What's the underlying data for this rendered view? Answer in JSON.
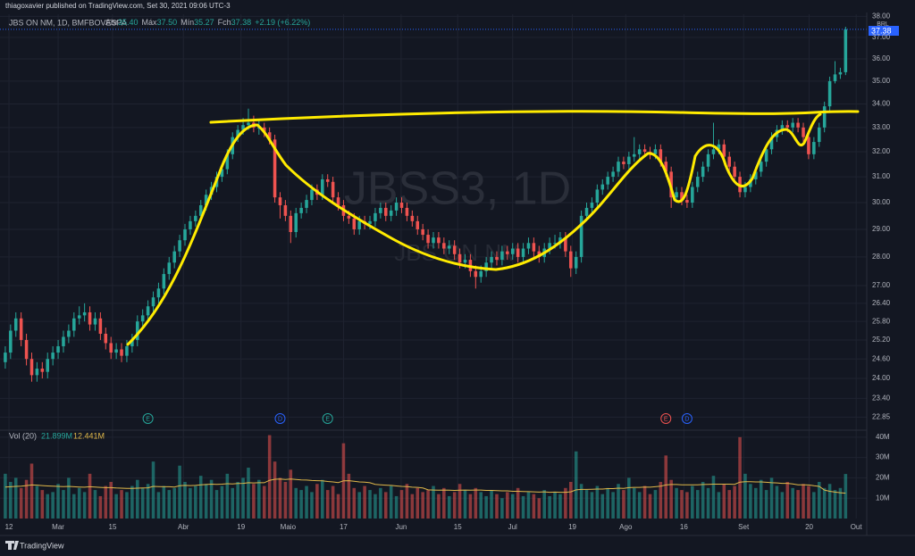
{
  "header": {
    "publisher": "thiagoxavier published on TradingView.com, Set 30, 2021 09:06 UTC-3"
  },
  "chart_data": {
    "type": "candlestick",
    "title": "JBS ON NM, 1D, BMFBOVESPA",
    "legend": {
      "open_label": "Abr",
      "open": "35.40",
      "high_label": "Máx",
      "high": "37.50",
      "low_label": "Mín",
      "low": "35.27",
      "close_label": "Fch",
      "close": "37.38",
      "change": "+2.19 (+6.22%)"
    },
    "watermark": "JBSS3, 1D",
    "watermark_sub": "JBS ON NM",
    "currency": "BRL",
    "up_color": "#26a69a",
    "down_color": "#ef5350",
    "log_scale": true,
    "grid": true,
    "ylim": [
      22.5,
      38.1
    ],
    "yticks": [
      {
        "value": 22.85,
        "label": "22.85"
      },
      {
        "value": 23.4,
        "label": "23.40"
      },
      {
        "value": 24,
        "label": "24.00"
      },
      {
        "value": 24.6,
        "label": "24.60"
      },
      {
        "value": 25.2,
        "label": "25.20"
      },
      {
        "value": 25.8,
        "label": "25.80"
      },
      {
        "value": 26.4,
        "label": "26.40"
      },
      {
        "value": 27,
        "label": "27.00"
      },
      {
        "value": 28,
        "label": "28.00"
      },
      {
        "value": 29,
        "label": "29.00"
      },
      {
        "value": 30,
        "label": "30.00"
      },
      {
        "value": 31,
        "label": "31.00"
      },
      {
        "value": 32,
        "label": "32.00"
      },
      {
        "value": 33,
        "label": "33.00"
      },
      {
        "value": 34,
        "label": "34.00"
      },
      {
        "value": 35,
        "label": "35.00"
      },
      {
        "value": 36,
        "label": "36.00"
      },
      {
        "value": 37,
        "label": "37.00"
      },
      {
        "value": 38,
        "label": "38.00"
      }
    ],
    "xlim": [
      -1,
      163
    ],
    "xticks": [
      {
        "value": 0.7,
        "label": "12"
      },
      {
        "value": 10,
        "label": "Mar"
      },
      {
        "value": 20.3,
        "label": "15"
      },
      {
        "value": 33.7,
        "label": "Abr"
      },
      {
        "value": 44.6,
        "label": "19"
      },
      {
        "value": 53.5,
        "label": "Maio"
      },
      {
        "value": 64,
        "label": "17"
      },
      {
        "value": 74.9,
        "label": "Jun"
      },
      {
        "value": 85.6,
        "label": "15"
      },
      {
        "value": 96,
        "label": "Jul"
      },
      {
        "value": 107.3,
        "label": "19"
      },
      {
        "value": 117.4,
        "label": "Ago"
      },
      {
        "value": 128.4,
        "label": "16"
      },
      {
        "value": 139.7,
        "label": "Set"
      },
      {
        "value": 152.1,
        "label": "20"
      },
      {
        "value": 161,
        "label": "Out"
      }
    ],
    "open": [
      24.5,
      24.8,
      25.5,
      25.9,
      25.2,
      24.6,
      24.1,
      24.3,
      24.2,
      24.6,
      24.8,
      25.0,
      25.3,
      25.5,
      25.9,
      26.0,
      26.1,
      25.7,
      25.9,
      25.4,
      25.1,
      24.8,
      24.9,
      24.7,
      25.0,
      25.2,
      25.8,
      26.0,
      26.3,
      26.6,
      26.9,
      27.4,
      27.8,
      28.2,
      28.6,
      29.0,
      29.3,
      29.5,
      29.9,
      30.3,
      30.6,
      31.0,
      31.3,
      31.9,
      32.6,
      32.9,
      33.1,
      33.2,
      33.0,
      33.0,
      32.8,
      32.5,
      30.2,
      29.9,
      29.5,
      28.9,
      29.6,
      29.8,
      30.1,
      30.5,
      30.3,
      30.9,
      30.8,
      30.2,
      29.9,
      29.5,
      29.4,
      29.0,
      29.3,
      29.2,
      29.3,
      29.6,
      29.8,
      29.5,
      29.7,
      30.0,
      29.8,
      29.5,
      29.3,
      29.0,
      28.8,
      28.5,
      28.7,
      28.5,
      28.3,
      28.4,
      28.1,
      27.8,
      27.9,
      27.5,
      27.3,
      27.5,
      27.8,
      28.0,
      27.9,
      28.2,
      28.1,
      28.3,
      28.0,
      28.3,
      28.5,
      28.2,
      28.0,
      28.3,
      28.5,
      28.5,
      28.7,
      28.2,
      27.6,
      28.0,
      29.5,
      29.8,
      30.0,
      30.5,
      30.7,
      31.0,
      31.2,
      31.6,
      31.5,
      31.8,
      31.9,
      32.1,
      32.0,
      31.9,
      32.1,
      31.6,
      31.2,
      30.2,
      30.4,
      30.1,
      30.0,
      30.6,
      31.0,
      31.4,
      31.9,
      32.1,
      32.3,
      31.8,
      31.4,
      31.0,
      30.4,
      30.6,
      30.9,
      31.2,
      31.6,
      32.1,
      32.6,
      32.9,
      33.1,
      33.0,
      33.2,
      33.0,
      32.6,
      31.9,
      32.4,
      33.0,
      33.9,
      35.0,
      35.3,
      35.4
    ],
    "high": [
      25.0,
      25.7,
      26.1,
      26.1,
      25.4,
      24.8,
      24.5,
      24.5,
      24.8,
      25.0,
      25.2,
      25.5,
      25.7,
      26.1,
      26.3,
      26.4,
      26.3,
      26.1,
      26.1,
      25.6,
      25.3,
      25.1,
      25.1,
      25.2,
      25.4,
      26.0,
      26.2,
      26.5,
      26.8,
      27.1,
      27.6,
      28.0,
      28.4,
      28.8,
      29.2,
      29.5,
      29.7,
      30.1,
      30.5,
      30.8,
      31.2,
      31.5,
      32.1,
      32.8,
      33.1,
      33.4,
      33.8,
      33.5,
      33.3,
      33.2,
      33.0,
      32.7,
      30.4,
      30.1,
      29.7,
      29.8,
      30.0,
      30.3,
      30.7,
      30.7,
      31.1,
      31.1,
      31.0,
      30.4,
      30.1,
      29.7,
      29.6,
      29.5,
      29.5,
      29.5,
      29.8,
      30.0,
      30.0,
      29.9,
      30.2,
      30.2,
      30.0,
      29.7,
      29.5,
      29.2,
      29.0,
      28.9,
      28.9,
      28.7,
      28.6,
      28.6,
      28.3,
      28.1,
      28.1,
      27.7,
      27.7,
      28.0,
      28.2,
      28.2,
      28.4,
      28.4,
      28.5,
      28.5,
      28.5,
      28.7,
      28.7,
      28.4,
      28.5,
      28.7,
      28.8,
      28.9,
      28.9,
      28.4,
      28.2,
      29.7,
      30.0,
      30.2,
      30.7,
      30.9,
      31.2,
      31.4,
      31.8,
      31.8,
      32.0,
      32.6,
      32.3,
      32.3,
      32.2,
      32.3,
      32.3,
      31.8,
      31.4,
      30.6,
      30.6,
      30.3,
      30.8,
      31.2,
      31.6,
      32.1,
      33.2,
      32.5,
      32.5,
      32.0,
      31.6,
      31.2,
      30.8,
      31.1,
      31.4,
      31.8,
      32.3,
      32.8,
      33.1,
      33.3,
      33.3,
      33.4,
      33.4,
      33.2,
      32.8,
      32.6,
      33.2,
      34.1,
      35.2,
      35.9,
      35.6,
      37.5
    ],
    "low": [
      24.3,
      24.6,
      25.3,
      25.0,
      24.4,
      23.9,
      23.9,
      24.0,
      24.0,
      24.4,
      24.6,
      24.8,
      25.1,
      25.3,
      25.7,
      25.8,
      25.5,
      25.5,
      25.2,
      24.9,
      24.6,
      24.6,
      24.5,
      24.5,
      24.8,
      25.0,
      25.6,
      25.8,
      26.1,
      26.4,
      26.7,
      27.2,
      27.6,
      28.0,
      28.4,
      28.8,
      29.1,
      29.3,
      29.7,
      30.1,
      30.4,
      30.8,
      31.1,
      31.7,
      32.4,
      32.7,
      32.9,
      32.8,
      32.7,
      32.6,
      32.3,
      30.0,
      29.4,
      29.3,
      28.5,
      28.7,
      29.4,
      29.6,
      29.9,
      30.1,
      30.1,
      30.6,
      30.0,
      29.7,
      29.3,
      29.2,
      28.8,
      28.8,
      29.0,
      29.0,
      29.1,
      29.4,
      29.3,
      29.3,
      29.5,
      29.6,
      29.3,
      29.1,
      28.8,
      28.6,
      28.3,
      28.3,
      28.3,
      28.1,
      28.1,
      27.9,
      27.6,
      27.6,
      27.3,
      26.9,
      27.1,
      27.3,
      27.6,
      27.7,
      27.7,
      27.9,
      27.9,
      27.8,
      27.8,
      28.1,
      28.0,
      27.8,
      27.8,
      28.1,
      28.3,
      28.3,
      28.0,
      27.3,
      27.4,
      27.8,
      29.3,
      29.6,
      29.8,
      30.3,
      30.5,
      30.8,
      31.0,
      31.3,
      31.3,
      31.6,
      31.7,
      31.8,
      31.7,
      31.7,
      31.4,
      31.0,
      29.8,
      30.0,
      29.9,
      29.8,
      29.8,
      30.4,
      30.8,
      31.2,
      31.7,
      31.9,
      31.6,
      31.2,
      30.8,
      30.2,
      30.2,
      30.4,
      30.7,
      31.0,
      31.4,
      31.9,
      32.4,
      32.7,
      32.8,
      32.8,
      32.8,
      32.4,
      31.7,
      31.7,
      32.2,
      32.8,
      33.7,
      34.9,
      35.1,
      35.27
    ],
    "close": [
      24.8,
      25.5,
      25.9,
      25.2,
      24.6,
      24.1,
      24.3,
      24.2,
      24.6,
      24.8,
      25.0,
      25.3,
      25.5,
      25.9,
      26.0,
      26.1,
      25.7,
      25.9,
      25.4,
      25.1,
      24.8,
      24.9,
      24.7,
      25.0,
      25.2,
      25.8,
      26.0,
      26.3,
      26.6,
      26.9,
      27.4,
      27.8,
      28.2,
      28.6,
      29.0,
      29.3,
      29.5,
      29.9,
      30.3,
      30.6,
      31.0,
      31.3,
      31.9,
      32.6,
      32.9,
      33.1,
      33.2,
      33.0,
      33.0,
      32.8,
      32.5,
      30.2,
      29.9,
      29.5,
      28.9,
      29.6,
      29.8,
      30.1,
      30.5,
      30.3,
      30.9,
      30.8,
      30.2,
      29.9,
      29.5,
      29.4,
      29.0,
      29.3,
      29.2,
      29.3,
      29.6,
      29.8,
      29.5,
      29.7,
      30.0,
      29.8,
      29.5,
      29.3,
      29.0,
      28.8,
      28.5,
      28.7,
      28.5,
      28.3,
      28.4,
      28.1,
      27.8,
      27.9,
      27.5,
      27.3,
      27.5,
      27.8,
      28.0,
      27.9,
      28.2,
      28.1,
      28.3,
      28.0,
      28.3,
      28.5,
      28.2,
      28.0,
      28.3,
      28.5,
      28.5,
      28.7,
      28.2,
      27.6,
      28.0,
      29.5,
      29.8,
      30.0,
      30.5,
      30.7,
      31.0,
      31.2,
      31.6,
      31.5,
      31.8,
      31.9,
      32.1,
      32.0,
      31.9,
      32.1,
      31.6,
      31.2,
      30.2,
      30.4,
      30.1,
      30.0,
      30.6,
      31.0,
      31.4,
      31.9,
      32.1,
      32.3,
      31.8,
      31.4,
      31.0,
      30.4,
      30.6,
      30.9,
      31.2,
      31.6,
      32.1,
      32.6,
      32.9,
      33.1,
      33.0,
      33.2,
      33.0,
      32.6,
      31.9,
      32.4,
      33.0,
      33.9,
      35.0,
      35.3,
      35.4,
      37.38
    ],
    "events": [
      {
        "index": 27,
        "label": "E",
        "color": "#26a69a"
      },
      {
        "index": 52,
        "label": "D",
        "color": "#2962ff"
      },
      {
        "index": 61,
        "label": "E",
        "color": "#26a69a"
      },
      {
        "index": 125,
        "label": "E",
        "color": "#ef5350"
      },
      {
        "index": 129,
        "label": "D",
        "color": "#2962ff"
      }
    ],
    "volume": {
      "title": "Vol (20)",
      "last": "21.899M",
      "ma_last": "12.441M",
      "ma_color": "#e0b84a",
      "ylim": [
        0,
        43
      ],
      "yticks": [
        {
          "value": 10,
          "label": "10M"
        },
        {
          "value": 20,
          "label": "20M"
        },
        {
          "value": 30,
          "label": "30M"
        },
        {
          "value": 40,
          "label": "40M"
        }
      ],
      "values": [
        22,
        18,
        20,
        15,
        19,
        27,
        16,
        14,
        12,
        13,
        17,
        14,
        20,
        12,
        15,
        13,
        22,
        14,
        11,
        16,
        18,
        12,
        14,
        13,
        16,
        19,
        15,
        17,
        28,
        13,
        16,
        14,
        15,
        26,
        18,
        15,
        16,
        21,
        17,
        19,
        14,
        16,
        22,
        15,
        18,
        20,
        25,
        17,
        19,
        16,
        41,
        28,
        20,
        18,
        24,
        15,
        14,
        16,
        13,
        17,
        19,
        14,
        16,
        12,
        37,
        22,
        15,
        13,
        16,
        14,
        12,
        15,
        13,
        16,
        11,
        14,
        17,
        12,
        15,
        13,
        14,
        16,
        12,
        15,
        11,
        13,
        17,
        14,
        12,
        15,
        13,
        11,
        14,
        12,
        10,
        13,
        12,
        15,
        11,
        13,
        12,
        10,
        14,
        11,
        13,
        12,
        15,
        18,
        33,
        17,
        14,
        13,
        16,
        12,
        15,
        13,
        17,
        14,
        20,
        15,
        13,
        16,
        12,
        14,
        18,
        31,
        19,
        15,
        14,
        13,
        16,
        14,
        18,
        15,
        21,
        13,
        17,
        14,
        16,
        40,
        22,
        17,
        15,
        19,
        14,
        20,
        16,
        13,
        18,
        15,
        14,
        17,
        16,
        13,
        18,
        15,
        17,
        14,
        15,
        21.899
      ],
      "ma": [
        15.5,
        15.6,
        15.8,
        15.9,
        16.2,
        16.5,
        16.4,
        16.2,
        16.0,
        15.9,
        15.8,
        15.7,
        15.8,
        15.6,
        15.5,
        15.4,
        15.6,
        15.5,
        15.3,
        15.2,
        15.2,
        15.0,
        14.9,
        14.8,
        14.8,
        14.9,
        15.0,
        15.1,
        15.8,
        15.7,
        15.6,
        15.6,
        15.5,
        16.1,
        16.3,
        16.2,
        16.3,
        16.6,
        16.7,
        16.9,
        16.8,
        16.9,
        17.1,
        17.0,
        17.2,
        17.3,
        17.6,
        17.5,
        17.6,
        17.6,
        18.8,
        19.3,
        19.4,
        19.2,
        19.4,
        19.2,
        19.0,
        18.9,
        18.7,
        18.6,
        18.5,
        18.2,
        18.0,
        17.7,
        18.5,
        18.6,
        18.3,
        18.0,
        17.9,
        17.6,
        16.8,
        16.6,
        16.4,
        16.3,
        16.0,
        15.8,
        15.7,
        15.4,
        15.3,
        15.0,
        14.1,
        14.0,
        13.9,
        14.0,
        13.9,
        13.8,
        13.9,
        14.0,
        13.9,
        14.0,
        14.0,
        13.8,
        13.8,
        13.7,
        13.6,
        13.6,
        13.4,
        13.4,
        13.3,
        13.2,
        13.1,
        13.0,
        13.1,
        12.9,
        13.0,
        12.9,
        12.9,
        13.1,
        14.1,
        14.3,
        14.3,
        14.4,
        14.5,
        14.5,
        14.7,
        14.7,
        14.9,
        14.8,
        15.2,
        15.3,
        15.3,
        15.5,
        15.4,
        15.6,
        15.9,
        16.5,
        16.7,
        16.7,
        16.6,
        16.6,
        16.6,
        16.6,
        16.7,
        16.8,
        16.9,
        16.9,
        16.9,
        16.9,
        16.8,
        17.9,
        18.1,
        18.1,
        18.0,
        18.0,
        17.8,
        17.6,
        17.5,
        17.3,
        17.3,
        17.0,
        16.6,
        16.6,
        16.5,
        16.1,
        15.8,
        14.0,
        13.4,
        13.0,
        12.7,
        12.441
      ]
    }
  },
  "footer": {
    "brand": "TradingView"
  }
}
